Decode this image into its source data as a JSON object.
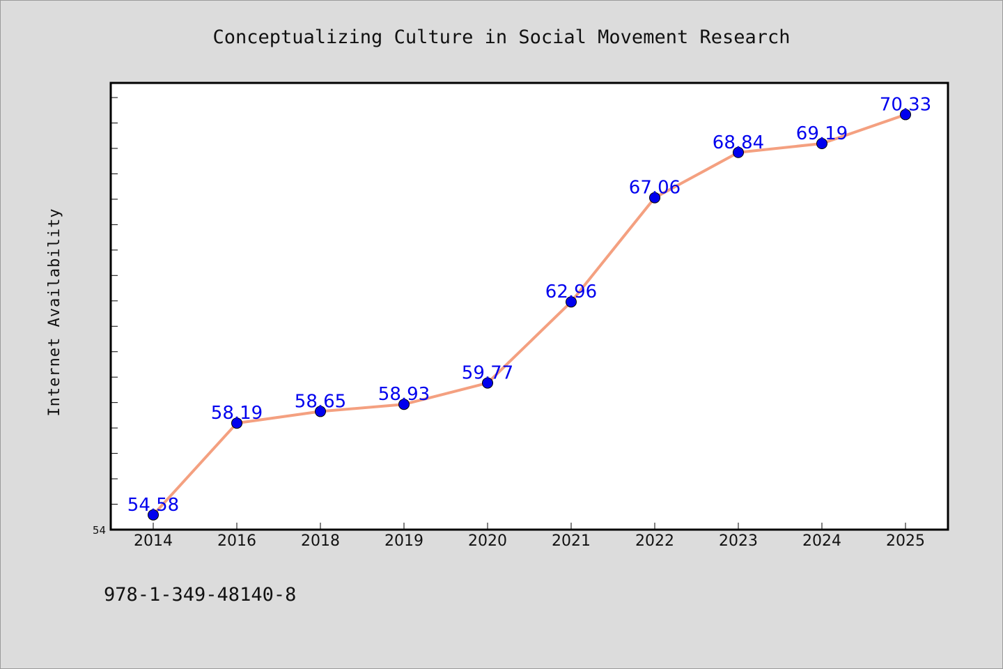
{
  "chart_data": {
    "type": "line",
    "title": "Conceptualizing Culture in Social Movement Research",
    "ylabel": "Internet Availability",
    "xlabel": "",
    "categories": [
      "2014",
      "2016",
      "2018",
      "2019",
      "2020",
      "2021",
      "2022",
      "2023",
      "2024",
      "2025"
    ],
    "series": [
      {
        "values": [
          54.58,
          58.19,
          58.65,
          58.93,
          59.77,
          62.96,
          67.06,
          68.84,
          69.19,
          70.33
        ],
        "labels": [
          "54.58",
          "58.19",
          "58.65",
          "58.93",
          "59.77",
          "62.96",
          "67.06",
          "68.84",
          "69.19",
          "70.33"
        ],
        "line_color": "#f4a080",
        "marker_color": "#0000ee",
        "label_color": "#0000ee"
      }
    ],
    "ylim": [
      54,
      71
    ],
    "yticks_labeled": [
      "54"
    ],
    "y_minor_tick_step": 1,
    "grid": false,
    "legend": "none"
  },
  "footer": {
    "isbn": "978-1-349-48140-8"
  },
  "colors": {
    "background": "#dcdcdc",
    "plot_background": "#ffffff",
    "axis": "#000000"
  }
}
